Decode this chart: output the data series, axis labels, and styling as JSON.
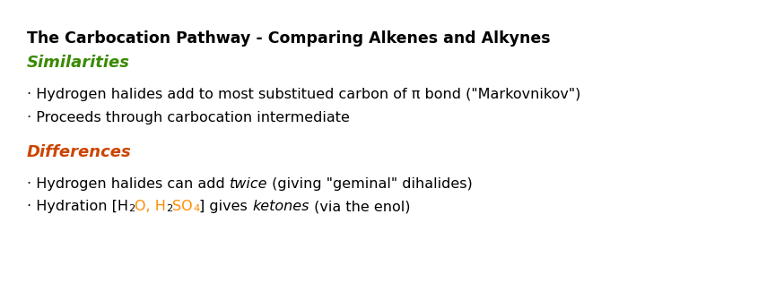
{
  "title": "The Carbocation Pathway - Comparing Alkenes and Alkynes",
  "title_fontsize": 12.5,
  "title_color": "#000000",
  "similarities_label": "Similarities",
  "similarities_color": "#3a8a00",
  "differences_label": "Differences",
  "differences_color": "#cc4400",
  "section_fontsize": 13,
  "bullet_fontsize": 11.5,
  "bullet_color": "#000000",
  "orange_color": "#ff8c00",
  "background_color": "#ffffff",
  "bullet1": "· Hydrogen halides add to most substitued carbon of π bond (\"Markovnikov\")",
  "bullet2": "· Proceeds through carbocation intermediate",
  "bullet3_pre": "· Hydrogen halides can add ",
  "bullet3_italic": "twice",
  "bullet3_post": " (giving \"geminal\" dihalides)",
  "figsize": [
    8.74,
    3.16
  ],
  "dpi": 100
}
